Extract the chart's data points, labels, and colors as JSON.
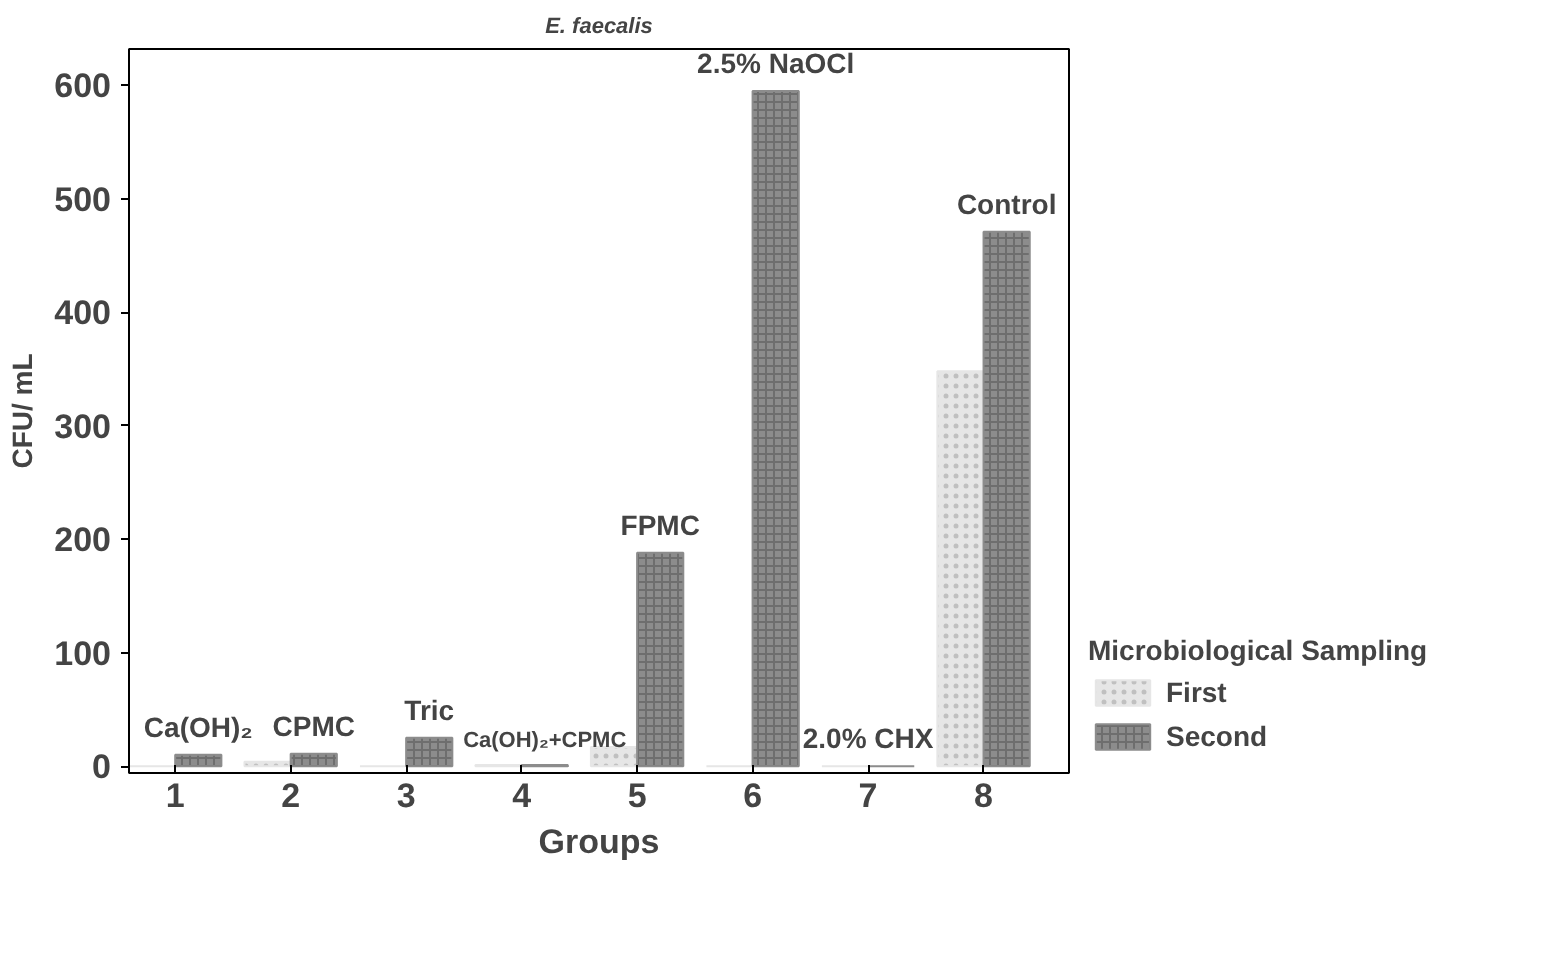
{
  "chart_data": {
    "type": "bar",
    "title": "E. faecalis",
    "xlabel": "Groups",
    "ylabel": "CFU/ mL",
    "legend_title": "Microbiological Sampling",
    "categories": [
      "1",
      "2",
      "3",
      "4",
      "5",
      "6",
      "7",
      "8"
    ],
    "series": [
      {
        "name": "First",
        "color": "#e6e6e6",
        "values": [
          0,
          4,
          0,
          1,
          17,
          0,
          0,
          348
        ]
      },
      {
        "name": "Second",
        "color": "#8c8c8c",
        "values": [
          10,
          11,
          25,
          1,
          188,
          595,
          0,
          471
        ]
      }
    ],
    "ylim": [
      -6,
      632
    ],
    "yticks": [
      0,
      100,
      200,
      300,
      400,
      500,
      600
    ],
    "grid": false,
    "legend": "right",
    "annotations": [
      "Ca(OH)₂",
      "CPMC",
      "Tric",
      "Ca(OH)₂+CPMC",
      "FPMC",
      "2.5% NaOCl",
      "2.0% CHX",
      "Control"
    ]
  }
}
